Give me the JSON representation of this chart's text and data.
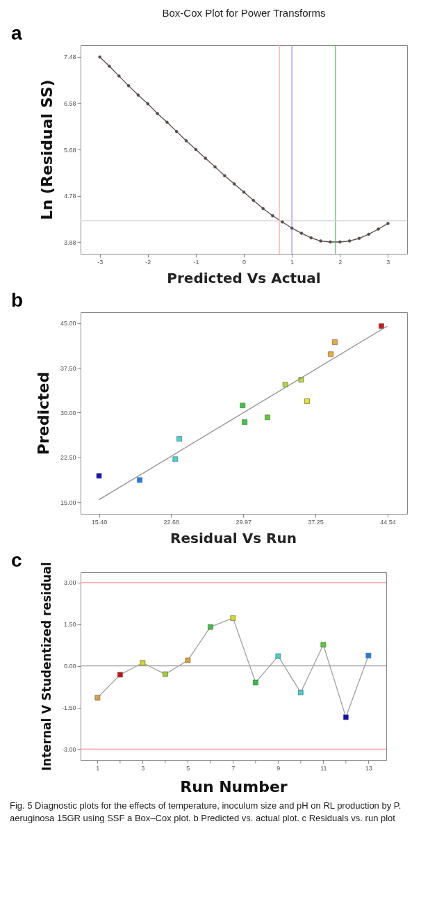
{
  "chart_data": [
    {
      "type": "line",
      "title": "Box-Cox Plot for Power Transforms",
      "ylabel": "Ln (Residual SS)",
      "annotations": [
        "a"
      ],
      "marker": "circle",
      "line_style": "solid",
      "x": [
        -3,
        -2.8,
        -2.6,
        -2.4,
        -2.2,
        -2,
        -1.8,
        -1.6,
        -1.4,
        -1.2,
        -1,
        -0.8,
        -0.6,
        -0.4,
        -0.2,
        0,
        0.2,
        0.4,
        0.6,
        0.8,
        1,
        1.2,
        1.4,
        1.6,
        1.8,
        2,
        2.2,
        2.4,
        2.6,
        2.8,
        3
      ],
      "series": [
        {
          "color": "#5a4a46",
          "values": [
            7.48,
            7.3,
            7.11,
            6.92,
            6.74,
            6.57,
            6.38,
            6.21,
            6.03,
            5.85,
            5.68,
            5.51,
            5.34,
            5.17,
            5.01,
            4.85,
            4.69,
            4.53,
            4.39,
            4.27,
            4.15,
            4.05,
            3.96,
            3.9,
            3.88,
            3.88,
            3.9,
            3.95,
            4.03,
            4.13,
            4.24
          ]
        }
      ],
      "xlim": [
        -3.4,
        3.4
      ],
      "ylim": [
        3.65,
        7.71
      ],
      "xticks": [
        -3,
        -2,
        -1,
        0,
        1,
        2,
        3
      ],
      "yticks": [
        {
          "value": 3.88,
          "label": "3.88"
        },
        {
          "value": 4.78,
          "label": "4.78"
        },
        {
          "value": 5.68,
          "label": "5.68"
        },
        {
          "value": 6.58,
          "label": "6.58"
        },
        {
          "value": 7.48,
          "label": "7.48"
        }
      ],
      "ref_lines": [
        {
          "axis": "y",
          "value": 4.29,
          "color": "#d0d0d0"
        },
        {
          "axis": "x",
          "value": 0.74,
          "color": "#ffaaaa"
        },
        {
          "axis": "x",
          "value": 1.0,
          "color": "#8888ff"
        },
        {
          "axis": "x",
          "value": 1.91,
          "color": "#44bb44"
        }
      ]
    },
    {
      "type": "scatter",
      "title": "Predicted Vs  Actual",
      "ylabel": "Predicted",
      "annotations": [
        "b"
      ],
      "marker": "square",
      "series": [
        {
          "x": [
            15.4,
            19.5,
            23.1,
            23.5,
            29.9,
            30.1,
            32.4,
            34.2,
            35.8,
            36.4,
            38.8,
            39.2,
            43.9
          ],
          "values": [
            19.4,
            18.7,
            22.2,
            25.6,
            31.2,
            28.4,
            29.2,
            34.7,
            35.5,
            31.9,
            39.8,
            41.8,
            44.5
          ],
          "colors": [
            "#1414c8",
            "#2080e8",
            "#40d8d8",
            "#40d8d8",
            "#38c838",
            "#38c838",
            "#60cc30",
            "#b0dc30",
            "#b0dc30",
            "#e8e020",
            "#f0a830",
            "#f0a830",
            "#d01818"
          ]
        },
        {
          "type": "line",
          "color": "#909090",
          "marker": "none",
          "x": [
            15.4,
            44.5
          ],
          "values": [
            15.4,
            44.5
          ]
        }
      ],
      "xlim": [
        13.54,
        46.5
      ],
      "ylim": [
        13.03,
        46.83
      ],
      "xticks": [
        {
          "value": 15.4,
          "label": "15.40"
        },
        {
          "value": 22.68,
          "label": "22.68"
        },
        {
          "value": 29.97,
          "label": "29.97"
        },
        {
          "value": 37.25,
          "label": "37.25"
        },
        {
          "value": 44.54,
          "label": "44.54"
        }
      ],
      "yticks": [
        {
          "value": 15,
          "label": "15.00"
        },
        {
          "value": 22.5,
          "label": "22.50"
        },
        {
          "value": 30,
          "label": "30.00"
        },
        {
          "value": 37.5,
          "label": "37.50"
        },
        {
          "value": 45,
          "label": "45.00"
        }
      ]
    },
    {
      "type": "line",
      "title": "Residual Vs Run",
      "xlabel": "Run Number",
      "ylabel": "Internal V Studentized residual",
      "marker": "square",
      "line_style": "solid",
      "annotations": [
        "c",
        "Fig. 5  Diagnostic plots for the effects of temperature, inoculum size and pH on RL production by P. aeruginosa 15GR using SSF a Box–Cox plot. b Predicted vs. actual plot. c Residuals vs. run plot"
      ],
      "x": [
        1,
        2,
        3,
        4,
        5,
        6,
        7,
        8,
        9,
        10,
        11,
        12,
        13
      ],
      "series": [
        {
          "color": "#a0a0a0",
          "values": [
            -1.15,
            -0.32,
            0.11,
            -0.3,
            0.2,
            1.4,
            1.72,
            -0.6,
            0.35,
            -0.96,
            0.76,
            -1.85,
            0.37
          ],
          "colors": [
            "#e0a040",
            "#cc1010",
            "#d8d820",
            "#a0d030",
            "#e0a030",
            "#40c040",
            "#d8d820",
            "#30c040",
            "#40d0d0",
            "#40d0d0",
            "#50d030",
            "#1010c0",
            "#2080e0"
          ]
        }
      ],
      "xlim": [
        0.25,
        13.79
      ],
      "ylim": [
        -3.39,
        3.37
      ],
      "xticks": [
        1,
        {
          "value": 2,
          "label": null
        },
        3,
        {
          "value": 4,
          "label": null
        },
        5,
        {
          "value": 6,
          "label": null
        },
        7,
        {
          "value": 8,
          "label": null
        },
        9,
        {
          "value": 10,
          "label": null
        },
        11,
        {
          "value": 12,
          "label": null
        },
        13
      ],
      "yticks": [
        {
          "value": -3,
          "label": "-3.00"
        },
        {
          "value": -1.5,
          "label": "-1.50"
        },
        {
          "value": 0,
          "label": "0.00"
        },
        {
          "value": 1.5,
          "label": "1.50"
        },
        {
          "value": 3,
          "label": "3.00"
        }
      ],
      "ref_lines": [
        {
          "axis": "y",
          "value": 3,
          "color": "#ff9090"
        },
        {
          "axis": "y",
          "value": 0,
          "color": "#a0a0a0"
        },
        {
          "axis": "y",
          "value": -3,
          "color": "#ff9090"
        }
      ]
    }
  ]
}
